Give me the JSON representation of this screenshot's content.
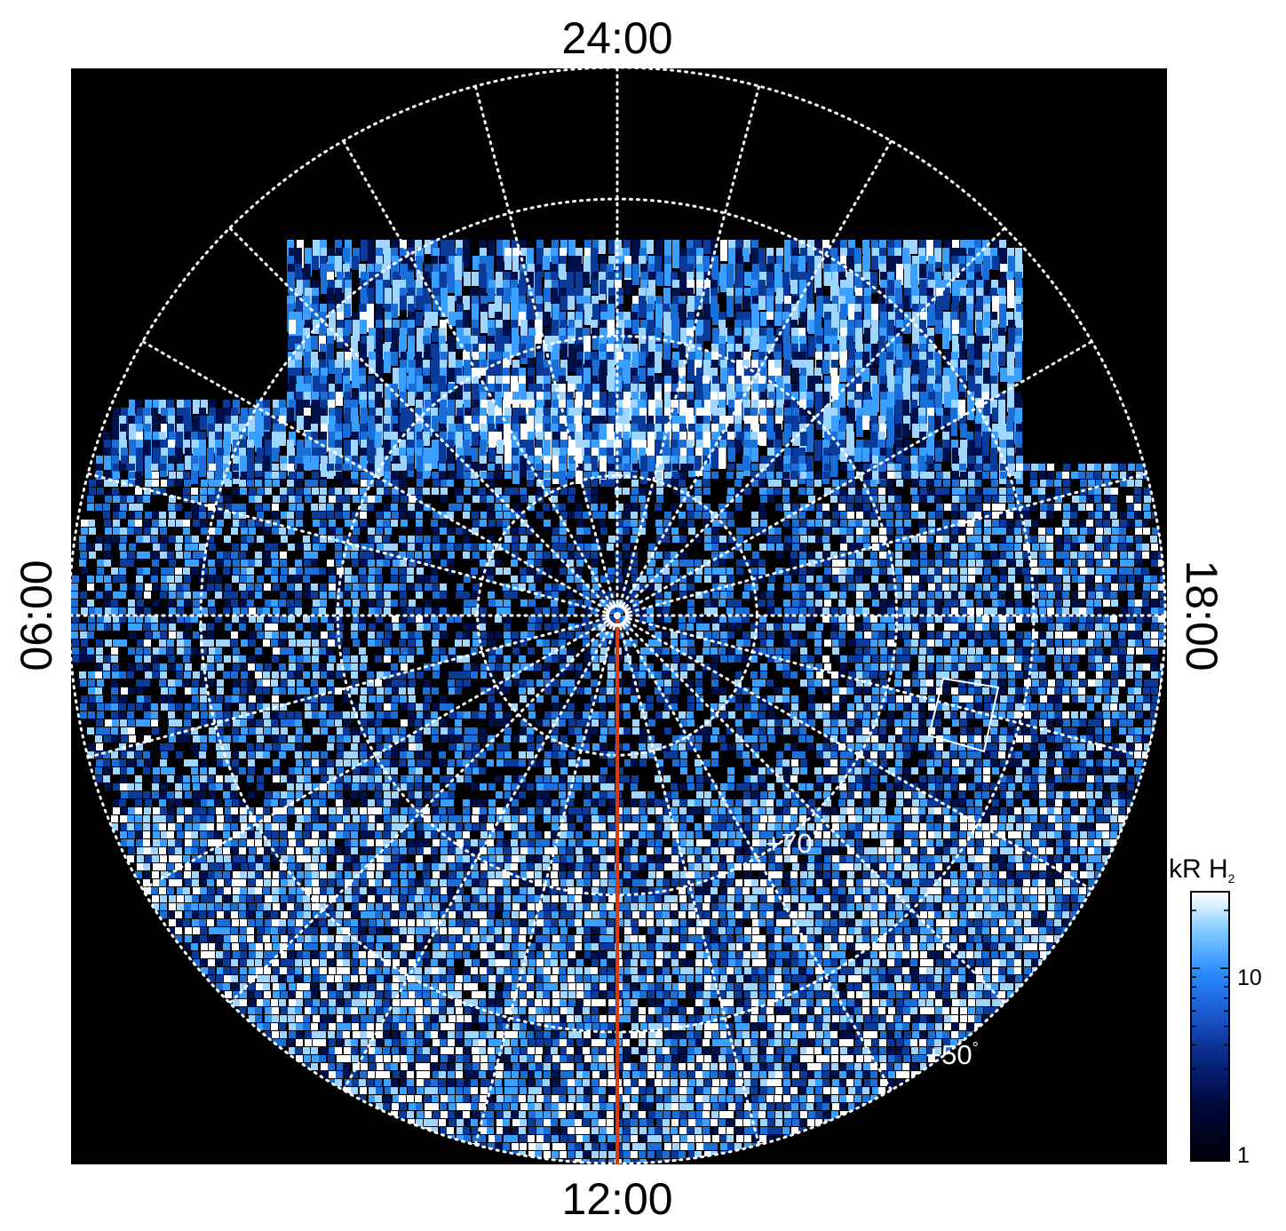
{
  "image": {
    "kind": "polar projection of UV auroral emission (H2 bands)",
    "background_color": "#000000",
    "emission_palette": [
      "#000010",
      "#00104a",
      "#0a3a9a",
      "#1a6ed8",
      "#3aa0ff",
      "#9fd6ff",
      "#ffffff"
    ]
  },
  "local_time_labels": {
    "top": "24:00",
    "bottom": "12:00",
    "left": "06:00",
    "right": "18:00"
  },
  "latitude_labels": {
    "inner": "+70",
    "outer": "+50",
    "degree_symbol": "°"
  },
  "grid": {
    "style": "dotted",
    "color": "#ffffff",
    "latitude_circles": [
      "+90 (pole)",
      "+80",
      "+70",
      "+60",
      "+50",
      "+40"
    ],
    "meridian_count": 24
  },
  "overlays": {
    "meridian_line_color": "#d83a12",
    "meridian_line_description": "noon meridian marker from pole to 12:00",
    "box_color": "#ffffff",
    "pole_marker_color": "#ffffff"
  },
  "colorbar": {
    "title": "kR H",
    "title_subscript": "2",
    "ticks": [
      "1",
      "10"
    ],
    "scale": "log",
    "range": [
      1,
      25
    ],
    "colors": [
      "#000008",
      "#00083a",
      "#0a2a8a",
      "#1a5ad0",
      "#2a8cff",
      "#7cc8ff",
      "#d8f0ff",
      "#ffffff"
    ]
  }
}
